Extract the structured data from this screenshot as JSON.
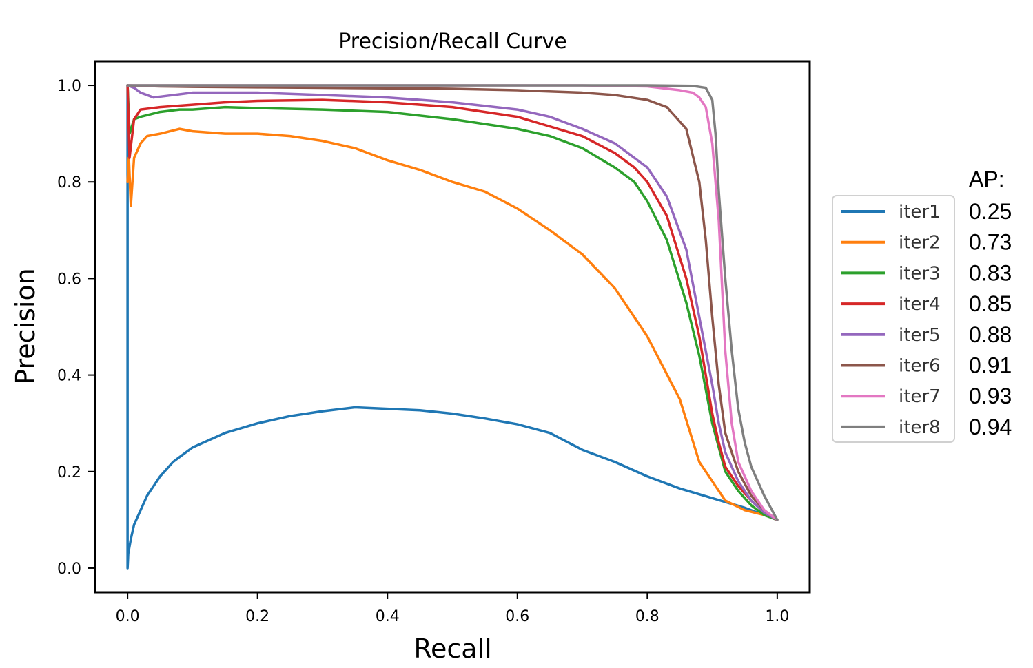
{
  "chart_data": {
    "type": "line",
    "title": "Precision/Recall Curve",
    "xlabel": "Recall",
    "ylabel": "Precision",
    "xlim": [
      -0.05,
      1.05
    ],
    "ylim": [
      -0.05,
      1.05
    ],
    "xticks": [
      0.0,
      0.2,
      0.4,
      0.6,
      0.8,
      1.0
    ],
    "xtick_labels": [
      "0.0",
      "0.2",
      "0.4",
      "0.6",
      "0.8",
      "1.0"
    ],
    "yticks": [
      0.0,
      0.2,
      0.4,
      0.6,
      0.8,
      1.0
    ],
    "ytick_labels": [
      "0.0",
      "0.2",
      "0.4",
      "0.6",
      "0.8",
      "1.0"
    ],
    "grid": false,
    "legend_position": "right",
    "ap_header": "AP:",
    "series": [
      {
        "name": "iter1",
        "color": "#1f77b4",
        "ap": "0.25",
        "x": [
          0,
          0,
          0.001,
          0.005,
          0.01,
          0.02,
          0.03,
          0.05,
          0.07,
          0.1,
          0.15,
          0.2,
          0.25,
          0.3,
          0.35,
          0.4,
          0.45,
          0.5,
          0.55,
          0.6,
          0.65,
          0.7,
          0.75,
          0.8,
          0.85,
          0.9,
          0.95,
          1.0
        ],
        "y": [
          1.0,
          0.0,
          0.03,
          0.06,
          0.09,
          0.12,
          0.15,
          0.19,
          0.22,
          0.25,
          0.28,
          0.3,
          0.315,
          0.325,
          0.333,
          0.33,
          0.327,
          0.32,
          0.31,
          0.298,
          0.28,
          0.245,
          0.22,
          0.19,
          0.165,
          0.145,
          0.125,
          0.1
        ]
      },
      {
        "name": "iter2",
        "color": "#ff7f0e",
        "ap": "0.73",
        "x": [
          0,
          0.002,
          0.005,
          0.01,
          0.02,
          0.03,
          0.05,
          0.08,
          0.1,
          0.15,
          0.2,
          0.25,
          0.3,
          0.35,
          0.4,
          0.45,
          0.5,
          0.55,
          0.6,
          0.65,
          0.7,
          0.75,
          0.8,
          0.85,
          0.88,
          0.9,
          0.92,
          0.95,
          0.98,
          1.0
        ],
        "y": [
          0.8,
          0.85,
          0.75,
          0.85,
          0.88,
          0.895,
          0.9,
          0.91,
          0.905,
          0.9,
          0.9,
          0.895,
          0.885,
          0.87,
          0.845,
          0.825,
          0.8,
          0.78,
          0.745,
          0.7,
          0.65,
          0.58,
          0.48,
          0.35,
          0.22,
          0.18,
          0.14,
          0.12,
          0.11,
          0.1
        ]
      },
      {
        "name": "iter3",
        "color": "#2ca02c",
        "ap": "0.83",
        "x": [
          0,
          0.003,
          0.01,
          0.02,
          0.05,
          0.08,
          0.1,
          0.15,
          0.2,
          0.3,
          0.4,
          0.5,
          0.6,
          0.65,
          0.7,
          0.75,
          0.78,
          0.8,
          0.83,
          0.86,
          0.88,
          0.9,
          0.91,
          0.92,
          0.94,
          0.96,
          0.98,
          1.0
        ],
        "y": [
          1.0,
          0.9,
          0.93,
          0.935,
          0.945,
          0.95,
          0.95,
          0.955,
          0.953,
          0.95,
          0.945,
          0.93,
          0.91,
          0.895,
          0.87,
          0.83,
          0.8,
          0.76,
          0.68,
          0.55,
          0.44,
          0.3,
          0.25,
          0.2,
          0.16,
          0.13,
          0.11,
          0.1
        ]
      },
      {
        "name": "iter4",
        "color": "#d62728",
        "ap": "0.85",
        "x": [
          0,
          0.003,
          0.01,
          0.02,
          0.05,
          0.1,
          0.15,
          0.2,
          0.3,
          0.4,
          0.5,
          0.6,
          0.65,
          0.7,
          0.75,
          0.78,
          0.8,
          0.83,
          0.86,
          0.88,
          0.9,
          0.91,
          0.92,
          0.94,
          0.96,
          0.98,
          1.0
        ],
        "y": [
          1.0,
          0.85,
          0.93,
          0.95,
          0.955,
          0.96,
          0.965,
          0.968,
          0.97,
          0.965,
          0.955,
          0.935,
          0.915,
          0.895,
          0.86,
          0.83,
          0.8,
          0.73,
          0.6,
          0.48,
          0.32,
          0.26,
          0.21,
          0.17,
          0.14,
          0.115,
          0.1
        ]
      },
      {
        "name": "iter5",
        "color": "#9467bd",
        "ap": "0.88",
        "x": [
          0,
          0.01,
          0.02,
          0.04,
          0.07,
          0.1,
          0.2,
          0.3,
          0.4,
          0.5,
          0.6,
          0.65,
          0.7,
          0.75,
          0.8,
          0.83,
          0.86,
          0.88,
          0.9,
          0.91,
          0.92,
          0.94,
          0.96,
          0.98,
          1.0
        ],
        "y": [
          1.0,
          0.995,
          0.985,
          0.975,
          0.98,
          0.985,
          0.985,
          0.98,
          0.975,
          0.965,
          0.95,
          0.935,
          0.91,
          0.88,
          0.83,
          0.77,
          0.66,
          0.52,
          0.38,
          0.3,
          0.24,
          0.18,
          0.14,
          0.115,
          0.1
        ]
      },
      {
        "name": "iter6",
        "color": "#8c564b",
        "ap": "0.91",
        "x": [
          0,
          0.05,
          0.1,
          0.2,
          0.3,
          0.4,
          0.5,
          0.6,
          0.7,
          0.75,
          0.8,
          0.83,
          0.86,
          0.88,
          0.89,
          0.9,
          0.91,
          0.92,
          0.94,
          0.96,
          0.98,
          1.0
        ],
        "y": [
          1.0,
          0.998,
          0.997,
          0.996,
          0.995,
          0.994,
          0.993,
          0.99,
          0.985,
          0.98,
          0.97,
          0.955,
          0.91,
          0.8,
          0.68,
          0.52,
          0.38,
          0.28,
          0.2,
          0.15,
          0.12,
          0.1
        ]
      },
      {
        "name": "iter7",
        "color": "#e377c2",
        "ap": "0.93",
        "x": [
          0,
          0.2,
          0.4,
          0.6,
          0.7,
          0.8,
          0.85,
          0.87,
          0.88,
          0.89,
          0.9,
          0.91,
          0.92,
          0.93,
          0.94,
          0.96,
          0.98,
          1.0
        ],
        "y": [
          1.0,
          1.0,
          1.0,
          1.0,
          1.0,
          0.998,
          0.99,
          0.985,
          0.975,
          0.955,
          0.88,
          0.72,
          0.45,
          0.3,
          0.22,
          0.16,
          0.12,
          0.1
        ]
      },
      {
        "name": "iter8",
        "color": "#7f7f7f",
        "ap": "0.94",
        "x": [
          0,
          0.2,
          0.4,
          0.6,
          0.8,
          0.87,
          0.89,
          0.9,
          0.905,
          0.91,
          0.92,
          0.93,
          0.94,
          0.95,
          0.96,
          0.98,
          1.0
        ],
        "y": [
          1.0,
          1.0,
          1.0,
          1.0,
          1.0,
          0.999,
          0.995,
          0.97,
          0.9,
          0.78,
          0.6,
          0.45,
          0.33,
          0.26,
          0.21,
          0.15,
          0.1
        ]
      }
    ]
  }
}
